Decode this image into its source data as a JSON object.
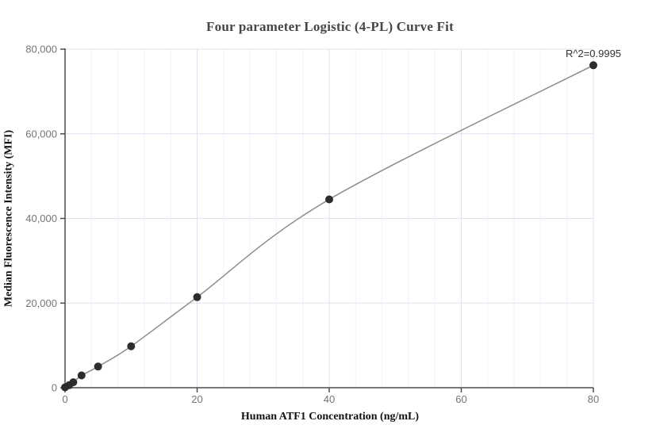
{
  "chart_data": {
    "type": "scatter",
    "title": "Four parameter Logistic (4-PL) Curve Fit",
    "xlabel": "Human ATF1 Concentration (ng/mL)",
    "ylabel": "Median Fluorescence Intensity (MFI)",
    "annotation": "R^2=0.9995",
    "fit": "4-PL logistic curve through points",
    "legend": "none",
    "grid": "on",
    "xlim": [
      0,
      80
    ],
    "ylim": [
      0,
      80000
    ],
    "x_ticks": [
      0,
      20,
      40,
      60,
      80
    ],
    "x_tick_labels": [
      "0",
      "20",
      "40",
      "60",
      "80"
    ],
    "x_minor_grid_step": 4,
    "y_ticks": [
      0,
      20000,
      40000,
      60000,
      80000
    ],
    "y_tick_labels": [
      "0",
      "20,000",
      "40,000",
      "60,000",
      "80,000"
    ],
    "points": [
      {
        "x": 0,
        "y": 100
      },
      {
        "x": 0.625,
        "y": 600
      },
      {
        "x": 1.25,
        "y": 1300
      },
      {
        "x": 2.5,
        "y": 2900
      },
      {
        "x": 5,
        "y": 5000
      },
      {
        "x": 10,
        "y": 9800
      },
      {
        "x": 20,
        "y": 21400
      },
      {
        "x": 40,
        "y": 44500
      },
      {
        "x": 80,
        "y": 76200
      }
    ],
    "colors": {
      "point": "#2d2d2d",
      "curve": "#8c8c8c",
      "grid_minor": "#eef2f8",
      "grid_major": "#dde4ef",
      "axis": "#4d4d4d",
      "tick_label": "#757575",
      "title": "#464646",
      "axis_label": "#111111",
      "annotation": "#333333"
    }
  }
}
